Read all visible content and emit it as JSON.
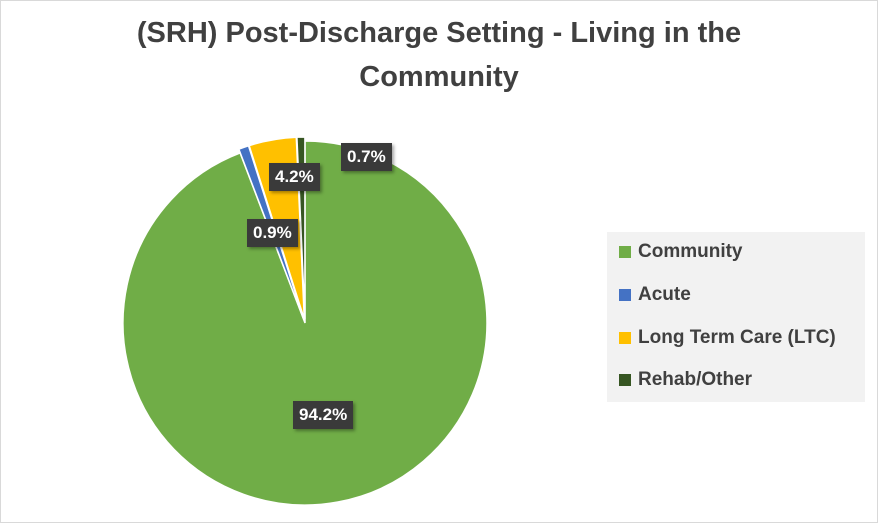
{
  "chart_data": {
    "type": "pie",
    "title": "(SRH) Post-Discharge Setting - Living in the Community",
    "title_lines": [
      "(SRH) Post-Discharge Setting - Living in the",
      "Community"
    ],
    "categories": [
      "Community",
      "Acute",
      "Long Term Care (LTC)",
      "Rehab/Other"
    ],
    "values": [
      94.2,
      0.9,
      4.2,
      0.7
    ],
    "data_labels": [
      "94.2%",
      "0.9%",
      "4.2%",
      "0.7%"
    ],
    "colors": [
      "#70ad47",
      "#4472c4",
      "#ffc000",
      "#375623"
    ],
    "legend_position": "right"
  }
}
